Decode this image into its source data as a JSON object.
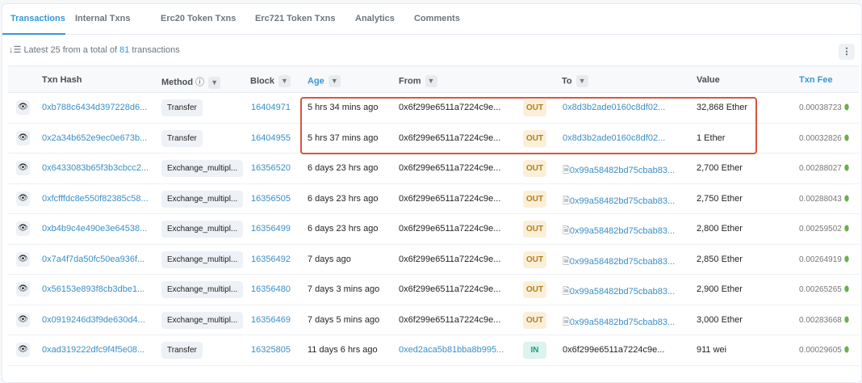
{
  "tabs": [
    {
      "label": "Transactions",
      "active": true
    },
    {
      "label": "Internal Txns"
    },
    {
      "label": "Erc20 Token Txns"
    },
    {
      "label": "Erc721 Token Txns"
    },
    {
      "label": "Analytics"
    },
    {
      "label": "Comments"
    }
  ],
  "summary": {
    "prefix": "Latest 25 from a total of",
    "count": "81",
    "suffix": "transactions"
  },
  "more_label": "⋮",
  "columns": {
    "hash": "Txn Hash",
    "method": "Method",
    "block": "Block",
    "age": "Age",
    "from": "From",
    "to": "To",
    "value": "Value",
    "fee": "Txn Fee"
  },
  "highlight_color": "#d9553f",
  "rows": [
    {
      "hash": "0xb788c6434d397228d6...",
      "method": "Transfer",
      "block": "16404971",
      "age": "5 hrs 34 mins ago",
      "from": "0x6f299e6511a7224c9e...",
      "dir": "OUT",
      "to": "0x8d3b2ade0160c8df02...",
      "to_contract": false,
      "value": "32,868 Ether",
      "fee": "0.00038723"
    },
    {
      "hash": "0x2a34b652e9ec0e673b...",
      "method": "Transfer",
      "block": "16404955",
      "age": "5 hrs 37 mins ago",
      "from": "0x6f299e6511a7224c9e...",
      "dir": "OUT",
      "to": "0x8d3b2ade0160c8df02...",
      "to_contract": false,
      "value": "1 Ether",
      "fee": "0.00032826"
    },
    {
      "hash": "0x6433083b65f3b3cbcc2...",
      "method": "Exchange_multipl...",
      "block": "16356520",
      "age": "6 days 23 hrs ago",
      "from": "0x6f299e6511a7224c9e...",
      "dir": "OUT",
      "to": "0x99a58482bd75cbab83...",
      "to_contract": true,
      "value": "2,700 Ether",
      "fee": "0.00288027"
    },
    {
      "hash": "0xfcfffdc8e550f82385c58...",
      "method": "Exchange_multipl...",
      "block": "16356505",
      "age": "6 days 23 hrs ago",
      "from": "0x6f299e6511a7224c9e...",
      "dir": "OUT",
      "to": "0x99a58482bd75cbab83...",
      "to_contract": true,
      "value": "2,750 Ether",
      "fee": "0.00288043"
    },
    {
      "hash": "0xb4b9c4e490e3e64538...",
      "method": "Exchange_multipl...",
      "block": "16356499",
      "age": "6 days 23 hrs ago",
      "from": "0x6f299e6511a7224c9e...",
      "dir": "OUT",
      "to": "0x99a58482bd75cbab83...",
      "to_contract": true,
      "value": "2,800 Ether",
      "fee": "0.00259502"
    },
    {
      "hash": "0x7a4f7da50fc50ea936f...",
      "method": "Exchange_multipl...",
      "block": "16356492",
      "age": "7 days ago",
      "from": "0x6f299e6511a7224c9e...",
      "dir": "OUT",
      "to": "0x99a58482bd75cbab83...",
      "to_contract": true,
      "value": "2,850 Ether",
      "fee": "0.00264919"
    },
    {
      "hash": "0x56153e893f8cb3dbe1...",
      "method": "Exchange_multipl...",
      "block": "16356480",
      "age": "7 days 3 mins ago",
      "from": "0x6f299e6511a7224c9e...",
      "dir": "OUT",
      "to": "0x99a58482bd75cbab83...",
      "to_contract": true,
      "value": "2,900 Ether",
      "fee": "0.00265265"
    },
    {
      "hash": "0x0919246d3f9de630d4...",
      "method": "Exchange_multipl...",
      "block": "16356469",
      "age": "7 days 5 mins ago",
      "from": "0x6f299e6511a7224c9e...",
      "dir": "OUT",
      "to": "0x99a58482bd75cbab83...",
      "to_contract": true,
      "value": "3,000 Ether",
      "fee": "0.00283668"
    },
    {
      "hash": "0xad319222dfc9f4f5e08...",
      "method": "Transfer",
      "block": "16325805",
      "age": "11 days 6 hrs ago",
      "from": "0xed2aca5b81bba8b995...",
      "from_link": true,
      "dir": "IN",
      "to": "0x6f299e6511a7224c9e...",
      "to_plain": true,
      "to_contract": false,
      "value": "911 wei",
      "fee": "0.00029605"
    }
  ]
}
